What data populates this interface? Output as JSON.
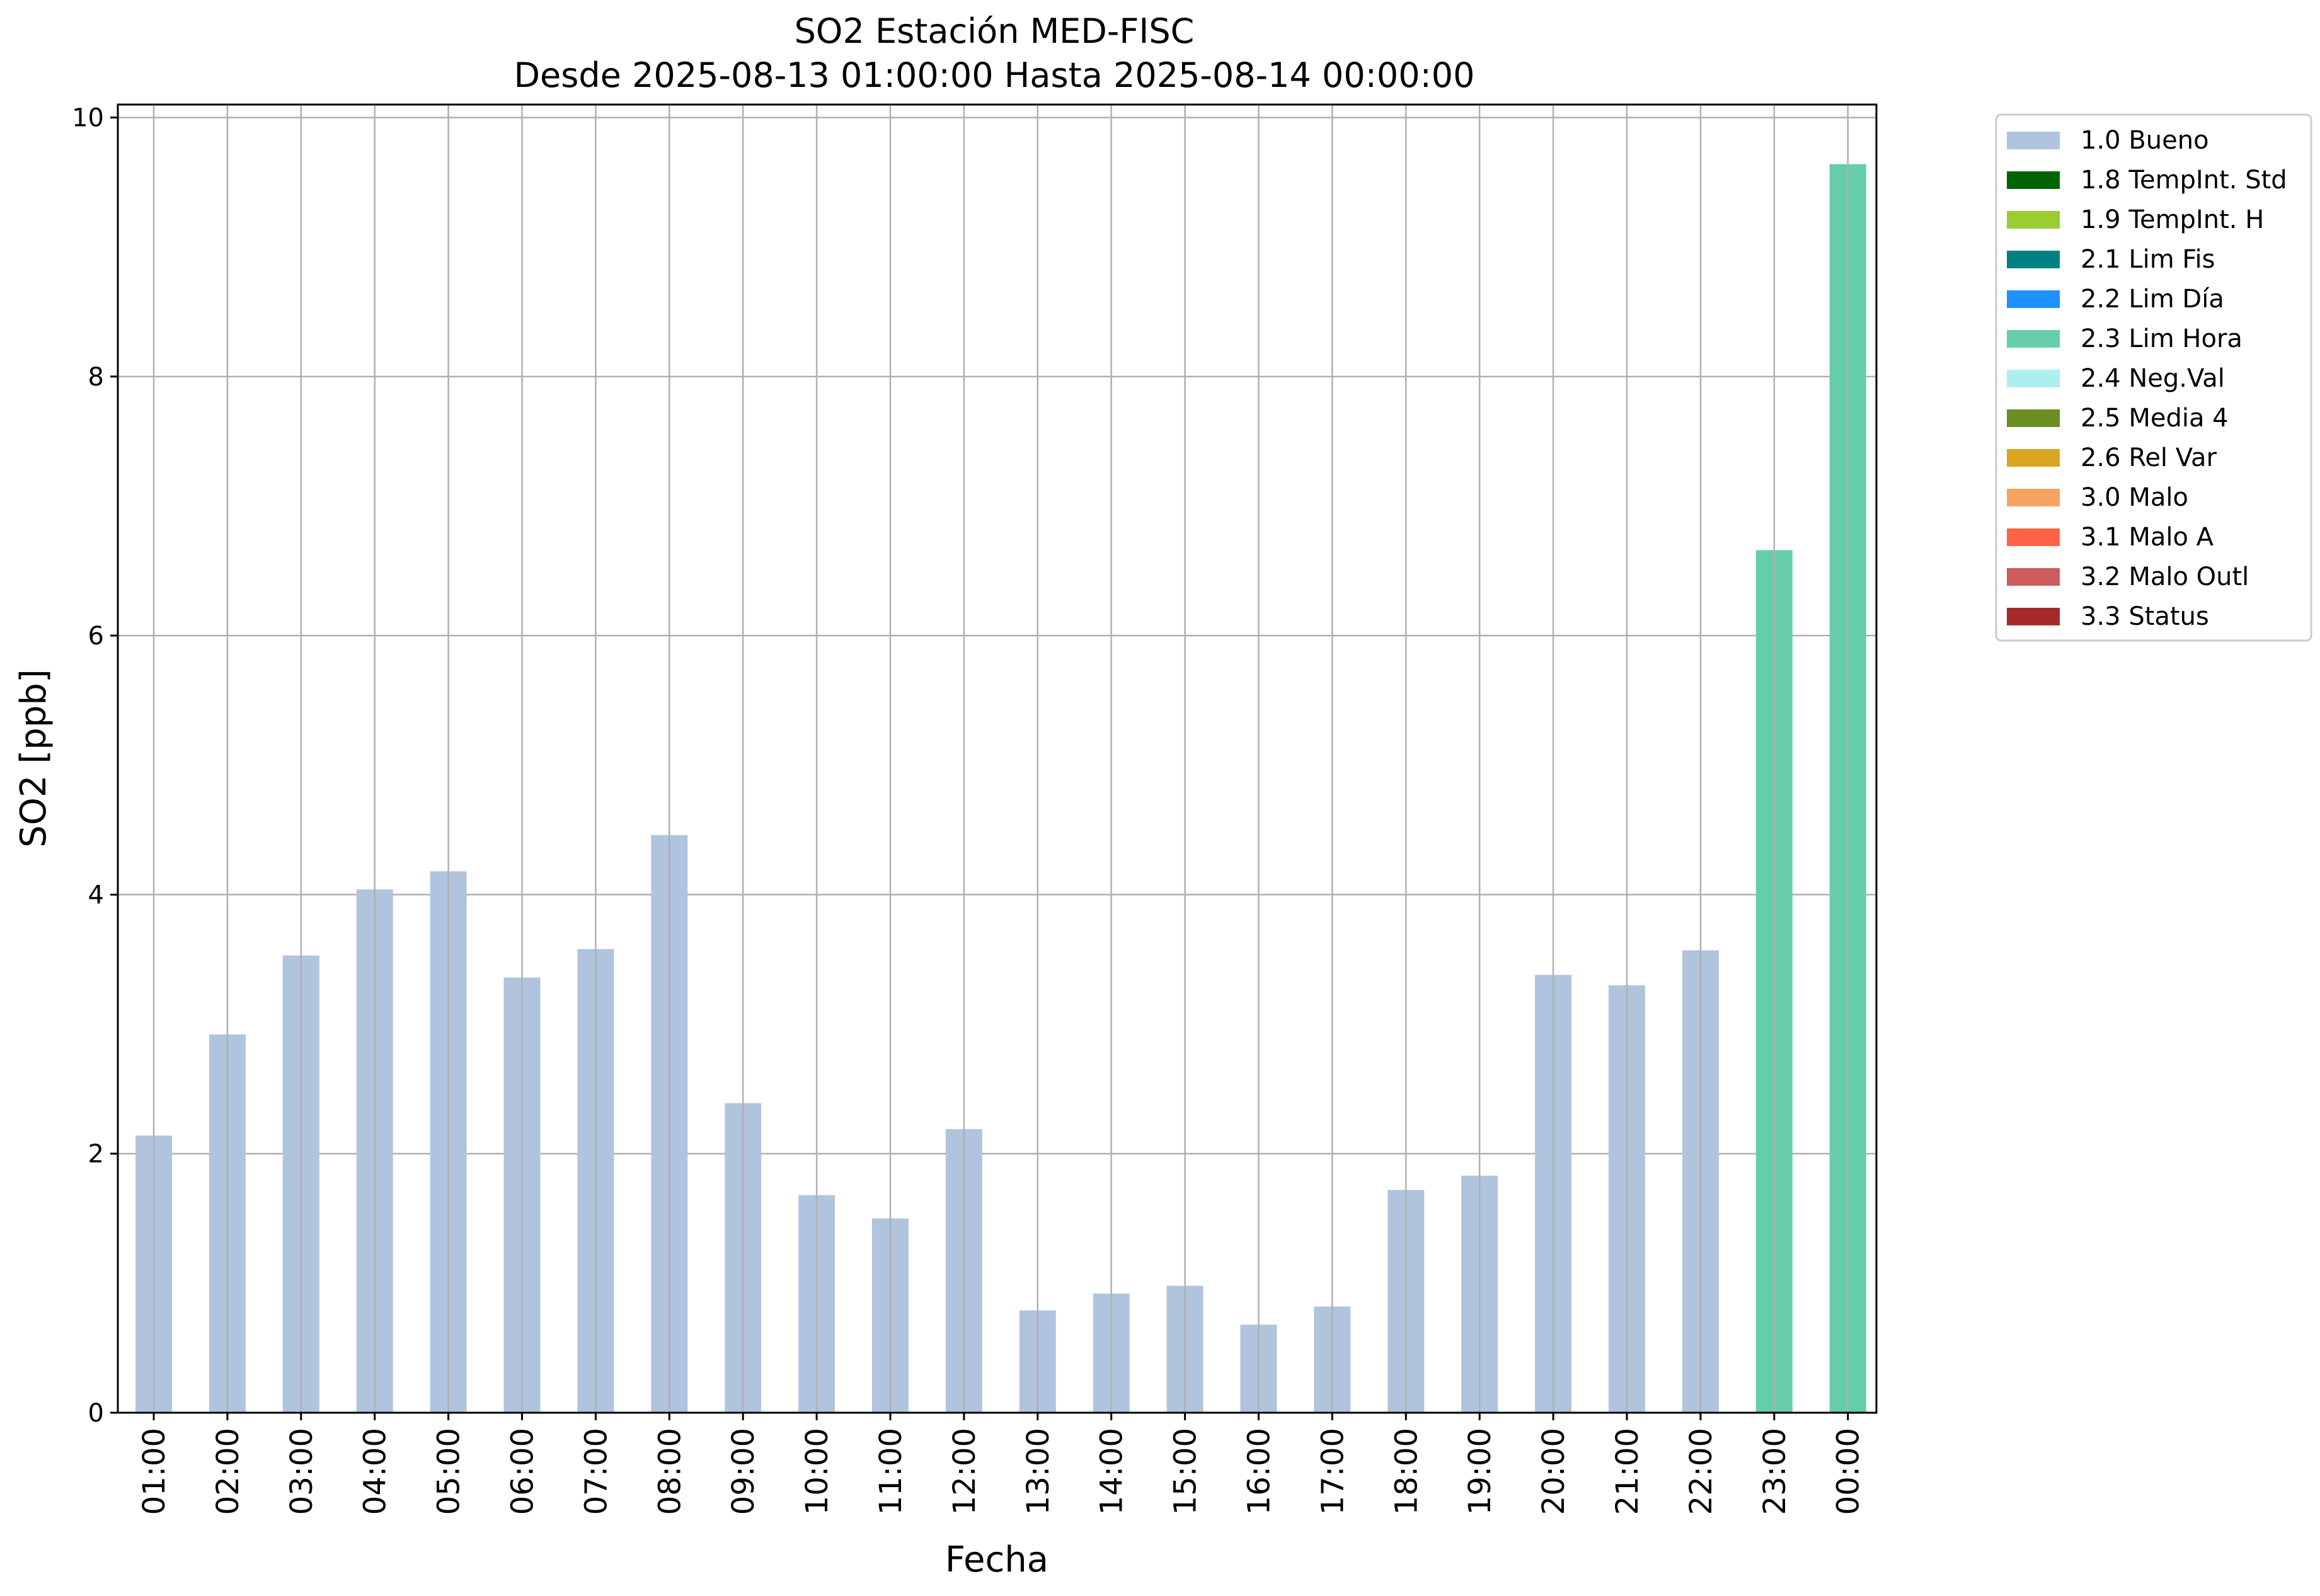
{
  "chart_data": {
    "type": "bar",
    "title": "SO2 Estación MED-FISC",
    "subtitle": "Desde 2025-08-13 01:00:00 Hasta 2025-08-14 00:00:00",
    "xlabel": "Fecha",
    "ylabel": "SO2 [ppb]",
    "ylim": [
      0,
      10.1
    ],
    "yticks": [
      0,
      2,
      4,
      6,
      8,
      10
    ],
    "grid": true,
    "legend_position": "outside-right-top",
    "categories": [
      "01:00",
      "02:00",
      "03:00",
      "04:00",
      "05:00",
      "06:00",
      "07:00",
      "08:00",
      "09:00",
      "10:00",
      "11:00",
      "12:00",
      "13:00",
      "14:00",
      "15:00",
      "16:00",
      "17:00",
      "18:00",
      "19:00",
      "20:00",
      "21:00",
      "22:00",
      "23:00",
      "00:00"
    ],
    "values": [
      2.14,
      2.92,
      3.53,
      4.04,
      4.18,
      3.36,
      3.58,
      4.46,
      2.39,
      1.68,
      1.5,
      2.19,
      0.79,
      0.92,
      0.98,
      0.68,
      0.82,
      1.72,
      1.83,
      3.38,
      3.3,
      3.57,
      6.66,
      9.64
    ],
    "flags": [
      "1.0 Bueno",
      "1.0 Bueno",
      "1.0 Bueno",
      "1.0 Bueno",
      "1.0 Bueno",
      "1.0 Bueno",
      "1.0 Bueno",
      "1.0 Bueno",
      "1.0 Bueno",
      "1.0 Bueno",
      "1.0 Bueno",
      "1.0 Bueno",
      "1.0 Bueno",
      "1.0 Bueno",
      "1.0 Bueno",
      "1.0 Bueno",
      "1.0 Bueno",
      "1.0 Bueno",
      "1.0 Bueno",
      "1.0 Bueno",
      "1.0 Bueno",
      "1.0 Bueno",
      "2.3 Lim Hora",
      "2.3 Lim Hora"
    ],
    "legend": [
      {
        "label": "1.0 Bueno",
        "color": "#b0c4de"
      },
      {
        "label": "1.8 TempInt. Std",
        "color": "#006400"
      },
      {
        "label": "1.9 TempInt. H",
        "color": "#9acd32"
      },
      {
        "label": "2.1 Lim Fis",
        "color": "#008080"
      },
      {
        "label": "2.2 Lim Día",
        "color": "#1e90ff"
      },
      {
        "label": "2.3 Lim Hora",
        "color": "#66cdaa"
      },
      {
        "label": "2.4 Neg.Val",
        "color": "#afeeee"
      },
      {
        "label": "2.5 Media 4",
        "color": "#6b8e23"
      },
      {
        "label": "2.6 Rel Var",
        "color": "#daa520"
      },
      {
        "label": "3.0 Malo",
        "color": "#f4a460"
      },
      {
        "label": "3.1 Malo A",
        "color": "#ff6347"
      },
      {
        "label": "3.2 Malo Outl",
        "color": "#cd5c5c"
      },
      {
        "label": "3.3 Status",
        "color": "#a52a2a"
      }
    ]
  }
}
